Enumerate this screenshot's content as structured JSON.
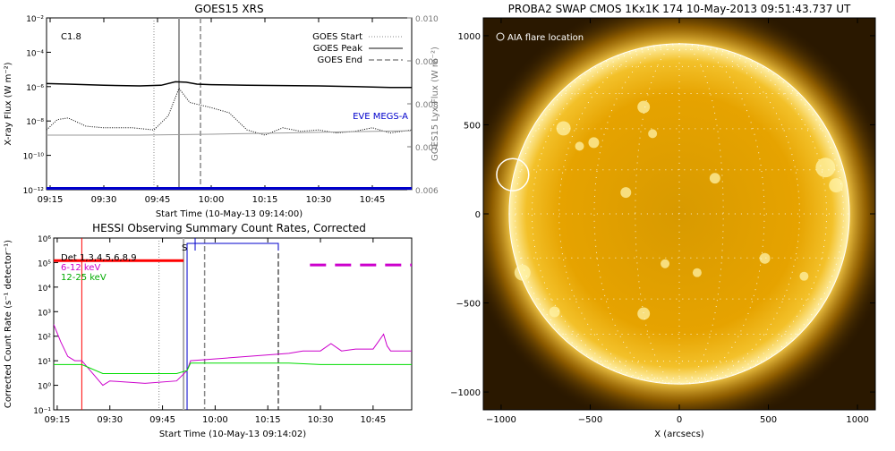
{
  "chart_data": [
    {
      "type": "line",
      "title": "GOES15 XRS",
      "xlabel": "Start Time (10-May-13 09:14:00)",
      "ylabel": "X-ray Flux (W m⁻²)",
      "ylabel_right": "GOES15 Lyx Flux (W m⁻²)",
      "annotation": "C1.8",
      "xlim": [
        "09:14",
        "10:56"
      ],
      "x_ticks": [
        "09:15",
        "09:30",
        "09:45",
        "10:00",
        "10:15",
        "10:30",
        "10:45"
      ],
      "ylim": [
        1e-12,
        0.01
      ],
      "yscale": "log",
      "y_ticks": [
        "10⁻¹²",
        "10⁻¹⁰",
        "10⁻⁸",
        "10⁻⁶",
        "10⁻⁴",
        "10⁻²"
      ],
      "ylim_right": [
        0.006,
        0.01
      ],
      "y_ticks_right": [
        "0.006",
        "0.007",
        "0.008",
        "0.009",
        "0.010"
      ],
      "legend": {
        "placement": "top-right",
        "entries": [
          "GOES Start",
          "GOES Peak",
          "GOES End"
        ]
      },
      "event_markers": {
        "goes_start": "09:44",
        "goes_peak": "09:51",
        "goes_end": "09:57"
      },
      "series": [
        {
          "name": "",
          "color": "#000000",
          "style": "solid",
          "x": [
            "09:14",
            "09:20",
            "09:30",
            "09:40",
            "09:46",
            "09:50",
            "09:53",
            "09:56",
            "10:00",
            "10:10",
            "10:20",
            "10:30",
            "10:40",
            "10:50",
            "10:56"
          ],
          "values": [
            1.5e-06,
            1.4e-06,
            1.2e-06,
            1.1e-06,
            1.2e-06,
            1.9e-06,
            1.8e-06,
            1.4e-06,
            1.3e-06,
            1.2e-06,
            1.15e-06,
            1.1e-06,
            1e-06,
            9e-07,
            9e-07
          ]
        },
        {
          "name": "",
          "color": "#000000",
          "style": "dotted",
          "x": [
            "09:14",
            "09:17",
            "09:20",
            "09:25",
            "09:30",
            "09:38",
            "09:44",
            "09:48",
            "09:51",
            "09:54",
            "10:00",
            "10:05",
            "10:10",
            "10:15",
            "10:20",
            "10:25",
            "10:30",
            "10:35",
            "10:40",
            "10:45",
            "10:50",
            "10:56"
          ],
          "values": [
            3e-09,
            1.2e-08,
            1.5e-08,
            5e-09,
            4e-09,
            4e-09,
            3e-09,
            2e-08,
            8e-07,
            1.2e-07,
            6e-08,
            3e-08,
            3e-09,
            1.5e-09,
            4e-09,
            2.5e-09,
            3e-09,
            2e-09,
            2.5e-09,
            4e-09,
            2e-09,
            3e-09
          ]
        },
        {
          "name": "",
          "color": "#999999",
          "style": "solid",
          "x": [
            "09:14",
            "09:40",
            "10:00",
            "10:20",
            "10:40",
            "10:56"
          ],
          "values": [
            1.5e-09,
            1.5e-09,
            1.7e-09,
            2e-09,
            2.4e-09,
            2.7e-09
          ]
        },
        {
          "name": "EVE MEGS-A",
          "color": "#0000cc",
          "style": "solid",
          "x": [
            "09:14",
            "10:56"
          ],
          "values": [
            1.2e-12,
            1.2e-12
          ]
        }
      ]
    },
    {
      "type": "line",
      "title": "HESSI Observing Summary Count Rates, Corrected",
      "xlabel": "Start Time (10-May-13 09:14:02)",
      "ylabel": "Corrected Count Rate (s⁻¹ detector⁻¹)",
      "xlim": [
        "09:14",
        "10:56"
      ],
      "x_ticks": [
        "09:15",
        "09:30",
        "09:45",
        "10:00",
        "10:15",
        "10:30",
        "10:45"
      ],
      "ylim": [
        0.1,
        1000000.0
      ],
      "yscale": "log",
      "y_ticks": [
        "10⁻¹",
        "10⁰",
        "10¹",
        "10²",
        "10³",
        "10⁴",
        "10⁵",
        "10⁶"
      ],
      "legend": {
        "placement": "top-left",
        "entries": [
          "Det 1,3,4,5,6,8,9",
          "6-12 keV",
          "12-25 keV"
        ]
      },
      "state_label": "S",
      "series": [
        {
          "name": "6-12 keV",
          "color": "#cc00cc",
          "x": [
            "09:14",
            "09:16",
            "09:18",
            "09:20",
            "09:22",
            "09:28",
            "09:30",
            "09:40",
            "09:49",
            "09:52",
            "09:53",
            "10:21",
            "10:25",
            "10:30",
            "10:33",
            "10:36",
            "10:40",
            "10:45",
            "10:48",
            "10:49",
            "10:50",
            "10:56"
          ],
          "values": [
            300,
            60,
            15,
            10,
            10,
            1.0,
            1.5,
            1.2,
            1.5,
            4,
            10,
            20,
            25,
            25,
            50,
            25,
            30,
            30,
            120,
            40,
            25,
            25
          ]
        },
        {
          "name": "12-25 keV",
          "color": "#00dd00",
          "x": [
            "09:14",
            "09:20",
            "09:22",
            "09:28",
            "09:30",
            "09:40",
            "09:49",
            "09:52",
            "09:53",
            "10:21",
            "10:30",
            "10:40",
            "10:50",
            "10:56"
          ],
          "values": [
            7,
            7,
            7,
            3,
            3,
            3,
            3,
            4,
            8,
            8,
            7,
            7,
            7,
            7
          ]
        },
        {
          "name": "",
          "color": "#ff0000",
          "style": "thick",
          "x": [
            "09:14",
            "09:51"
          ],
          "values": [
            120000.0,
            120000.0
          ]
        },
        {
          "name": "",
          "color": "#cc00cc",
          "style": "dashed-thick",
          "x": [
            "10:27",
            "10:56"
          ],
          "values": [
            80000.0,
            80000.0
          ]
        }
      ],
      "markers": {
        "red_line": "09:22",
        "dotted": "09:44",
        "grey": "09:51",
        "blue_box": [
          "09:52",
          "10:18"
        ],
        "dashed_end": "09:57",
        "dashed_black": "10:18"
      }
    },
    {
      "type": "heatmap",
      "title": "PROBA2 SWAP CMOS 1Kx1K 174 10-May-2013 09:51:43.737 UT",
      "xlabel": "X (arcsecs)",
      "ylabel": "",
      "xlim": [
        -1100,
        1100
      ],
      "ylim": [
        -1100,
        1100
      ],
      "x_ticks": [
        "−1000",
        "−500",
        "0",
        "500",
        "1000"
      ],
      "y_ticks": [
        "−1000",
        "−500",
        "0",
        "500",
        "1000"
      ],
      "legend_text": "AIA flare location",
      "flare_location": {
        "x": -935,
        "y": 220,
        "radius": 90
      },
      "solar_radius": 955,
      "grid": true,
      "colors": {
        "disk": "#e8a800",
        "bright": "#fff6c0",
        "background": "#2a1800"
      }
    }
  ]
}
